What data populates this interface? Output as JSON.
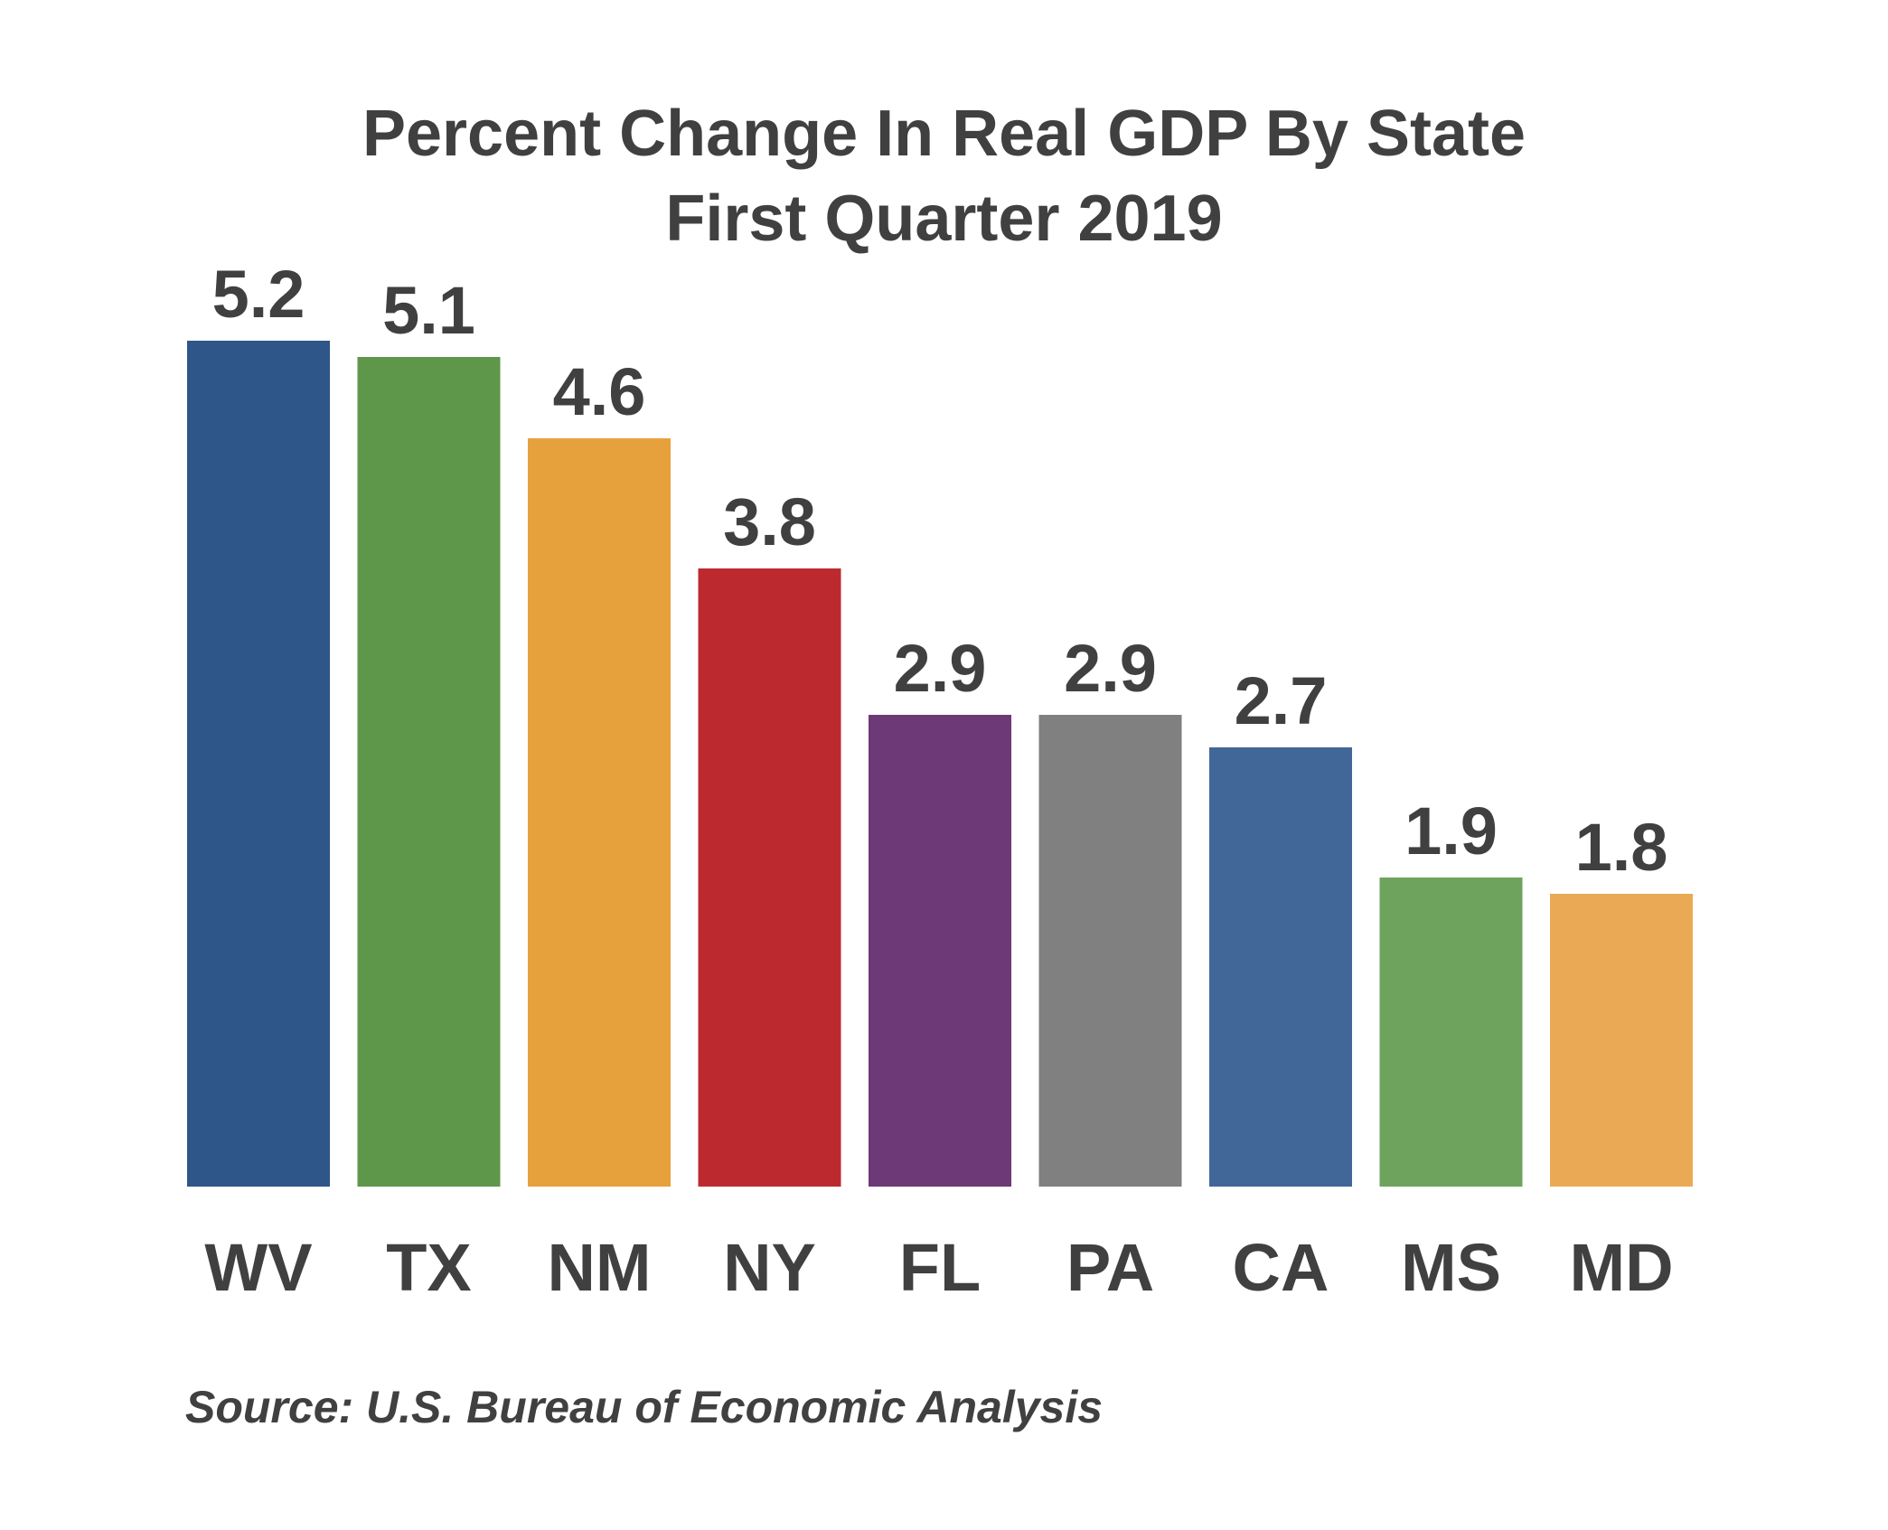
{
  "chart": {
    "title_line1": "Percent Change In Real GDP By State",
    "title_line2": "First Quarter 2019",
    "source": "Source: U.S. Bureau of Economic Analysis"
  },
  "chart_data": {
    "type": "bar",
    "title": "Percent Change In Real GDP By State First Quarter 2019",
    "categories": [
      "WV",
      "TX",
      "NM",
      "NY",
      "FL",
      "PA",
      "CA",
      "MS",
      "MD"
    ],
    "values": [
      5.2,
      5.1,
      4.6,
      3.8,
      2.9,
      2.9,
      2.7,
      1.9,
      1.8
    ],
    "value_labels": [
      "5.2",
      "5.1",
      "4.6",
      "3.8",
      "2.9",
      "2.9",
      "2.7",
      "1.9",
      "1.8"
    ],
    "colors": [
      "#2e5688",
      "#5e974a",
      "#e7a13c",
      "#bc2a30",
      "#6d3976",
      "#7f807f",
      "#416799",
      "#6ea35d",
      "#eaaa55"
    ],
    "xlabel": "",
    "ylabel": "",
    "ylim": [
      0,
      5.2
    ],
    "grid": false,
    "legend": "none",
    "source": "Source: U.S. Bureau of Economic Analysis"
  }
}
